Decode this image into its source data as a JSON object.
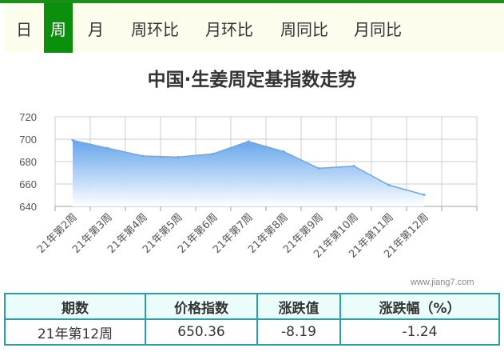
{
  "tabs": [
    {
      "label": "日",
      "active": false
    },
    {
      "label": "周",
      "active": true
    },
    {
      "label": "月",
      "active": false
    },
    {
      "label": "周环比",
      "active": false
    },
    {
      "label": "月环比",
      "active": false
    },
    {
      "label": "周同比",
      "active": false
    },
    {
      "label": "月同比",
      "active": false
    }
  ],
  "chart": {
    "title": "中国·生姜周定基指数走势",
    "watermark": "www.jiang7.com"
  },
  "chart_data": {
    "type": "area",
    "title": "中国·生姜周定基指数走势",
    "categories": [
      "21年第2周",
      "21年第3周",
      "21年第4周",
      "21年第5周",
      "21年第6周",
      "21年第7周",
      "21年第8周",
      "21年第9周",
      "21年第10周",
      "21年第11周",
      "21年第12周"
    ],
    "values": [
      699,
      692,
      685,
      684,
      687,
      698,
      689,
      674,
      676,
      659,
      650.36
    ],
    "yticks": [
      640,
      660,
      680,
      700,
      720
    ],
    "ylim": [
      640,
      720
    ],
    "grid": true,
    "colors": {
      "line": "#6aa8e8",
      "fill_top": "#5ea1ea",
      "fill_bottom": "#ffffff"
    }
  },
  "table": {
    "headers": [
      "期数",
      "价格指数",
      "涨跌值",
      "涨跌幅（%）"
    ],
    "row": [
      "21年第12周",
      "650.36",
      "-8.19",
      "-1.24"
    ]
  }
}
